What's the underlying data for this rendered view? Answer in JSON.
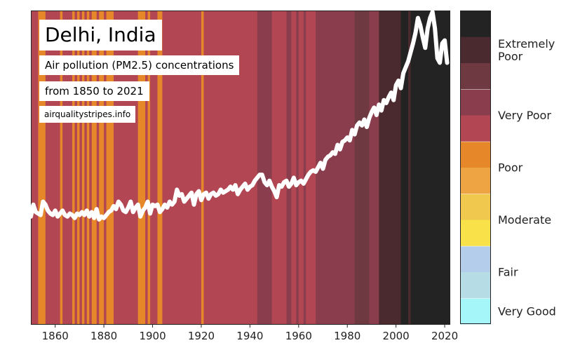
{
  "title": "Delhi, India",
  "subtitle": "Air pollution (PM2.5) concentrations",
  "date_range": "from 1850 to 2021",
  "source": "airqualitystripes.info",
  "chart_data": {
    "type": "line",
    "x_range": [
      1850,
      2022
    ],
    "x_ticks": [
      1860,
      1880,
      1900,
      1920,
      1940,
      1960,
      1980,
      2000,
      2020
    ],
    "y_range": [
      0,
      210
    ],
    "grid": false,
    "line_color": "#ffffff",
    "colors": {
      "very_good": "#a5f6f8",
      "fair_1": "#b6dde6",
      "fair_2": "#b3cdea",
      "moderate_1": "#f8e149",
      "moderate_2": "#f1c84e",
      "poor_1": "#efa443",
      "poor_2": "#e6882a",
      "very_poor_1": "#b24753",
      "very_poor_2": "#8a3e4d",
      "extremely_poor_1": "#6e3940",
      "extremely_poor_2": "#4a2a2f",
      "beyond": "#232323"
    },
    "legend": [
      {
        "label": "Very Good",
        "colors": [
          "very_good"
        ]
      },
      {
        "label": "Fair",
        "colors": [
          "fair_1",
          "fair_2"
        ]
      },
      {
        "label": "Moderate",
        "colors": [
          "moderate_1",
          "moderate_2"
        ]
      },
      {
        "label": "Poor",
        "colors": [
          "poor_1",
          "poor_2"
        ]
      },
      {
        "label": "Very Poor",
        "colors": [
          "very_poor_1",
          "very_poor_2"
        ]
      },
      {
        "label": "Extremely Poor",
        "colors": [
          "extremely_poor_1",
          "extremely_poor_2",
          "beyond"
        ]
      }
    ],
    "stripes": [
      {
        "from": 1850,
        "to": 1853,
        "color": "very_poor_1"
      },
      {
        "from": 1853,
        "to": 1856,
        "color": "poor_2"
      },
      {
        "from": 1856,
        "to": 1862,
        "color": "very_poor_1"
      },
      {
        "from": 1862,
        "to": 1863,
        "color": "poor_2"
      },
      {
        "from": 1863,
        "to": 1867,
        "color": "very_poor_1"
      },
      {
        "from": 1867,
        "to": 1868,
        "color": "poor_2"
      },
      {
        "from": 1868,
        "to": 1869,
        "color": "very_poor_1"
      },
      {
        "from": 1869,
        "to": 1870,
        "color": "poor_2"
      },
      {
        "from": 1870,
        "to": 1871,
        "color": "very_poor_1"
      },
      {
        "from": 1871,
        "to": 1872,
        "color": "poor_2"
      },
      {
        "from": 1872,
        "to": 1873,
        "color": "very_poor_1"
      },
      {
        "from": 1873,
        "to": 1874,
        "color": "poor_2"
      },
      {
        "from": 1874,
        "to": 1875,
        "color": "very_poor_1"
      },
      {
        "from": 1875,
        "to": 1877,
        "color": "poor_2"
      },
      {
        "from": 1877,
        "to": 1878,
        "color": "very_poor_1"
      },
      {
        "from": 1878,
        "to": 1880,
        "color": "poor_2"
      },
      {
        "from": 1880,
        "to": 1881,
        "color": "very_poor_1"
      },
      {
        "from": 1881,
        "to": 1884,
        "color": "poor_2"
      },
      {
        "from": 1884,
        "to": 1894,
        "color": "very_poor_1"
      },
      {
        "from": 1894,
        "to": 1897,
        "color": "poor_2"
      },
      {
        "from": 1897,
        "to": 1898,
        "color": "very_poor_1"
      },
      {
        "from": 1898,
        "to": 1899,
        "color": "poor_2"
      },
      {
        "from": 1899,
        "to": 1902,
        "color": "very_poor_1"
      },
      {
        "from": 1902,
        "to": 1904,
        "color": "poor_2"
      },
      {
        "from": 1904,
        "to": 1920,
        "color": "very_poor_1"
      },
      {
        "from": 1920,
        "to": 1921,
        "color": "poor_2"
      },
      {
        "from": 1921,
        "to": 1943,
        "color": "very_poor_1"
      },
      {
        "from": 1943,
        "to": 1949,
        "color": "very_poor_2"
      },
      {
        "from": 1949,
        "to": 1955,
        "color": "very_poor_1"
      },
      {
        "from": 1955,
        "to": 1957,
        "color": "very_poor_2"
      },
      {
        "from": 1957,
        "to": 1959,
        "color": "very_poor_1"
      },
      {
        "from": 1959,
        "to": 1960,
        "color": "very_poor_2"
      },
      {
        "from": 1960,
        "to": 1962,
        "color": "very_poor_1"
      },
      {
        "from": 1962,
        "to": 1963,
        "color": "very_poor_2"
      },
      {
        "from": 1963,
        "to": 1967,
        "color": "very_poor_1"
      },
      {
        "from": 1967,
        "to": 1983,
        "color": "very_poor_2"
      },
      {
        "from": 1983,
        "to": 1989,
        "color": "extremely_poor_1"
      },
      {
        "from": 1989,
        "to": 1993,
        "color": "very_poor_2"
      },
      {
        "from": 1993,
        "to": 2002,
        "color": "extremely_poor_2"
      },
      {
        "from": 2002,
        "to": 2005,
        "color": "beyond"
      },
      {
        "from": 2005,
        "to": 2006,
        "color": "extremely_poor_2"
      },
      {
        "from": 2006,
        "to": 2022,
        "color": "beyond"
      }
    ],
    "series": [
      {
        "x": [
          1850,
          1851,
          1852,
          1853,
          1854,
          1855,
          1856,
          1857,
          1858,
          1859,
          1860,
          1861,
          1862,
          1863,
          1864,
          1865,
          1866,
          1867,
          1868,
          1869,
          1870,
          1871,
          1872,
          1873,
          1874,
          1875,
          1876,
          1877,
          1878,
          1879,
          1880,
          1881,
          1882,
          1883,
          1884,
          1885,
          1886,
          1887,
          1888,
          1889,
          1890,
          1891,
          1892,
          1893,
          1894,
          1895,
          1896,
          1897,
          1898,
          1899,
          1900,
          1901,
          1902,
          1903,
          1904,
          1905,
          1906,
          1907,
          1908,
          1909,
          1910,
          1911,
          1912,
          1913,
          1914,
          1915,
          1916,
          1917,
          1918,
          1919,
          1920,
          1921,
          1922,
          1923,
          1924,
          1925,
          1926,
          1927,
          1928,
          1929,
          1930,
          1931,
          1932,
          1933,
          1934,
          1935,
          1936,
          1937,
          1938,
          1939,
          1940,
          1941,
          1942,
          1943,
          1944,
          1945,
          1946,
          1947,
          1948,
          1949,
          1950,
          1951,
          1952,
          1953,
          1954,
          1955,
          1956,
          1957,
          1958,
          1959,
          1960,
          1961,
          1962,
          1963,
          1964,
          1965,
          1966,
          1967,
          1968,
          1969,
          1970,
          1971,
          1972,
          1973,
          1974,
          1975,
          1976,
          1977,
          1978,
          1979,
          1980,
          1981,
          1982,
          1983,
          1984,
          1985,
          1986,
          1987,
          1988,
          1989,
          1990,
          1991,
          1992,
          1993,
          1994,
          1995,
          1996,
          1997,
          1998,
          1999,
          2000,
          2001,
          2002,
          2003,
          2004,
          2005,
          2006,
          2007,
          2008,
          2009,
          2010,
          2011,
          2012,
          2013,
          2014,
          2015,
          2016,
          2017,
          2018,
          2019,
          2020,
          2021
        ],
        "y": [
          72,
          80,
          75,
          74,
          73,
          82,
          80,
          76,
          74,
          73,
          76,
          72,
          74,
          76,
          73,
          72,
          74,
          73,
          71,
          74,
          73,
          75,
          73,
          76,
          72,
          75,
          71,
          77,
          70,
          72,
          71,
          73,
          75,
          76,
          79,
          77,
          82,
          80,
          76,
          75,
          78,
          82,
          75,
          78,
          80,
          72,
          76,
          78,
          82,
          74,
          80,
          79,
          80,
          75,
          77,
          80,
          78,
          82,
          80,
          82,
          90,
          86,
          87,
          82,
          84,
          86,
          88,
          80,
          87,
          89,
          83,
          87,
          88,
          84,
          87,
          88,
          86,
          87,
          90,
          88,
          89,
          90,
          92,
          90,
          93,
          87,
          90,
          92,
          94,
          90,
          92,
          93,
          96,
          98,
          100,
          100,
          95,
          93,
          96,
          92,
          89,
          85,
          93,
          92,
          95,
          96,
          92,
          94,
          98,
          93,
          95,
          96,
          94,
          97,
          100,
          102,
          103,
          102,
          105,
          108,
          104,
          110,
          112,
          113,
          115,
          114,
          120,
          117,
          122,
          123,
          125,
          123,
          130,
          127,
          133,
          135,
          133,
          137,
          132,
          138,
          142,
          145,
          140,
          147,
          143,
          150,
          148,
          152,
          155,
          150,
          160,
          163,
          158,
          168,
          172,
          176,
          182,
          188,
          195,
          205,
          200,
          192,
          185,
          198,
          205,
          210,
          198,
          178,
          175,
          188,
          190,
          175
        ]
      }
    ]
  }
}
